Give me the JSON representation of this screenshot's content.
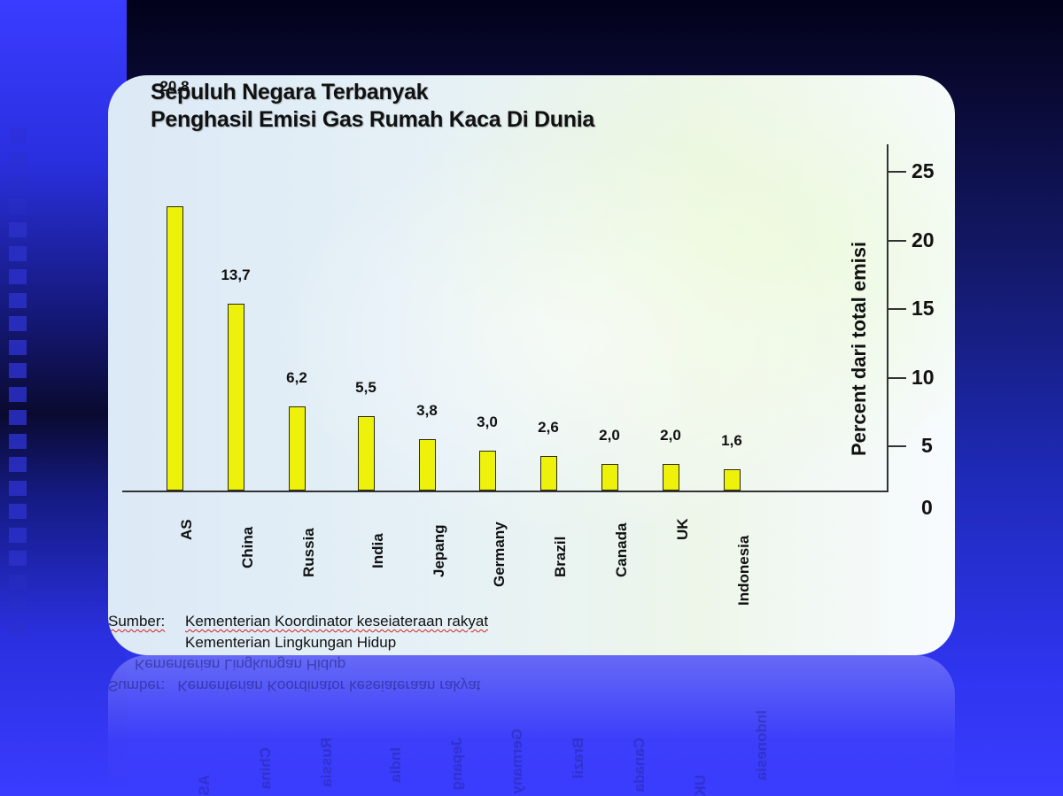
{
  "slide": {
    "title_line1": "Sepuluh Negara Terbanyak",
    "title_line2": "Penghasil Emisi  Gas Rumah Kaca Di Dunia",
    "source_label": "Sumber:",
    "source_line1": "Kementerian Koordinator keseiateraan rakyat",
    "source_line2": "Kementerian Lingkungan  Hidup"
  },
  "colors": {
    "bar_fill": "#eef20a",
    "bar_border": "#2a2a10",
    "background_blue": "#3a3cff",
    "background_dark": "#02021a"
  },
  "chart_data": {
    "type": "bar",
    "title": "Sepuluh Negara Terbanyak Penghasil Emisi Gas Rumah Kaca Di Dunia",
    "categories": [
      "AS",
      "China",
      "Russia",
      "India",
      "Jepang",
      "Germany",
      "Brazil",
      "Canada",
      "UK",
      "Indonesia"
    ],
    "values": [
      20.8,
      13.7,
      6.2,
      5.5,
      3.8,
      3.0,
      2.6,
      2.0,
      2.0,
      1.6
    ],
    "value_labels": [
      "20,8",
      "13,7",
      "6,2",
      "5,5",
      "3,8",
      "3,0",
      "2,6",
      "2,0",
      "2,0",
      "1,6"
    ],
    "xlabel": "",
    "ylabel": "Percent dari total emisi",
    "y_axis_position": "right",
    "ylim": [
      0,
      25
    ],
    "yticks": [
      "25",
      "20",
      "15",
      "10",
      "5",
      "0"
    ],
    "grid": false,
    "legend": null
  }
}
